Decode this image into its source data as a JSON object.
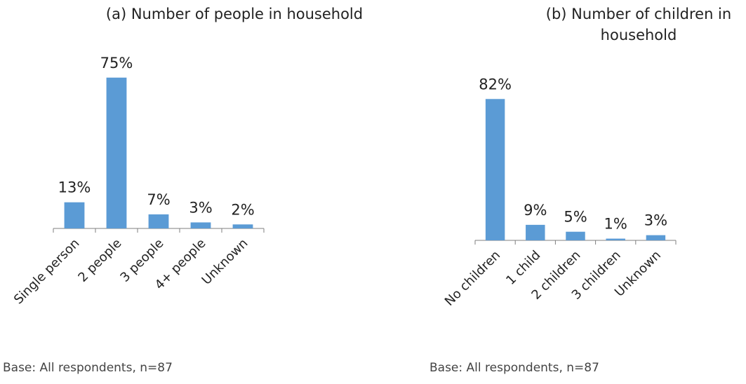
{
  "chart_data": [
    {
      "type": "bar",
      "title_lines": [
        "(a) Number of people in household"
      ],
      "categories": [
        "Single person",
        "2 people",
        "3 people",
        "4+ people",
        "Unknown"
      ],
      "values": [
        13,
        75,
        7,
        3,
        2
      ],
      "value_labels": [
        "13%",
        "75%",
        "7%",
        "3%",
        "2%"
      ],
      "unit": "%",
      "colors": [
        "#5b9bd5"
      ],
      "note": "Base: All respondents, n=87",
      "grid": false,
      "legend": "none"
    },
    {
      "type": "bar",
      "title_lines": [
        "(b) Number of children in",
        "household"
      ],
      "categories": [
        "No children",
        "1 child",
        "2 children",
        "3 children",
        "Unknown"
      ],
      "values": [
        82,
        9,
        5,
        1,
        3
      ],
      "value_labels": [
        "82%",
        "9%",
        "5%",
        "1%",
        "3%"
      ],
      "unit": "%",
      "colors": [
        "#5b9bd5"
      ],
      "note": "Base: All respondents, n=87",
      "grid": false,
      "legend": "none"
    }
  ]
}
